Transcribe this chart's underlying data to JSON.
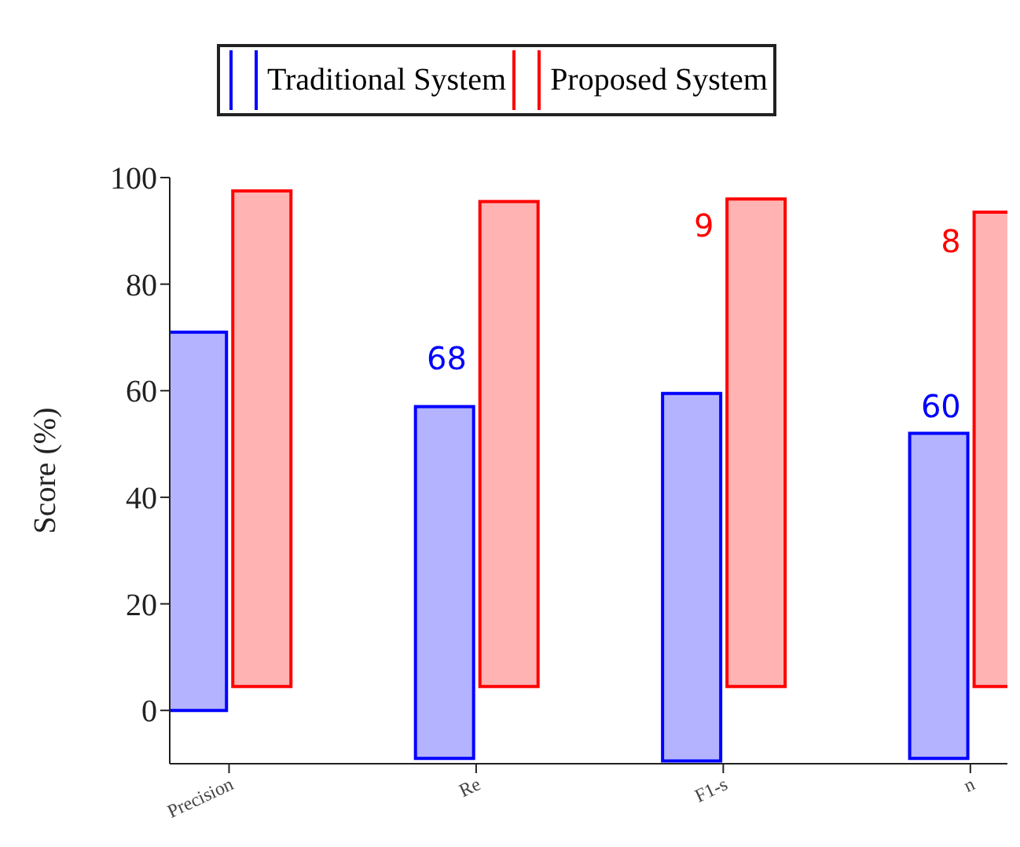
{
  "chart_data": {
    "type": "bar",
    "ylabel": "Score  (%)",
    "categories": [
      "Precision",
      "Re",
      "F1-s",
      "n"
    ],
    "series": [
      {
        "name": "Traditional System",
        "color": "#0000ff",
        "base": [
          0,
          -9,
          -9.5,
          -9
        ],
        "values": [
          71,
          66,
          69,
          61
        ]
      },
      {
        "name": "Proposed System",
        "color": "#ff0000",
        "base": [
          4.5,
          4.5,
          4.5,
          4.5
        ],
        "values": [
          93,
          91,
          91.5,
          89
        ]
      }
    ],
    "annotations": [
      {
        "text": "68",
        "x": "Re",
        "y": 64
      },
      {
        "text": "60",
        "x": "n",
        "y": 55
      },
      {
        "text": "9",
        "x": "F1-s",
        "y": 89
      },
      {
        "text": "8",
        "x": "n",
        "y": 86
      }
    ],
    "ylim": [
      -10,
      100
    ],
    "yticks": [
      0,
      20,
      40,
      60,
      80,
      100
    ],
    "legend": "top"
  }
}
